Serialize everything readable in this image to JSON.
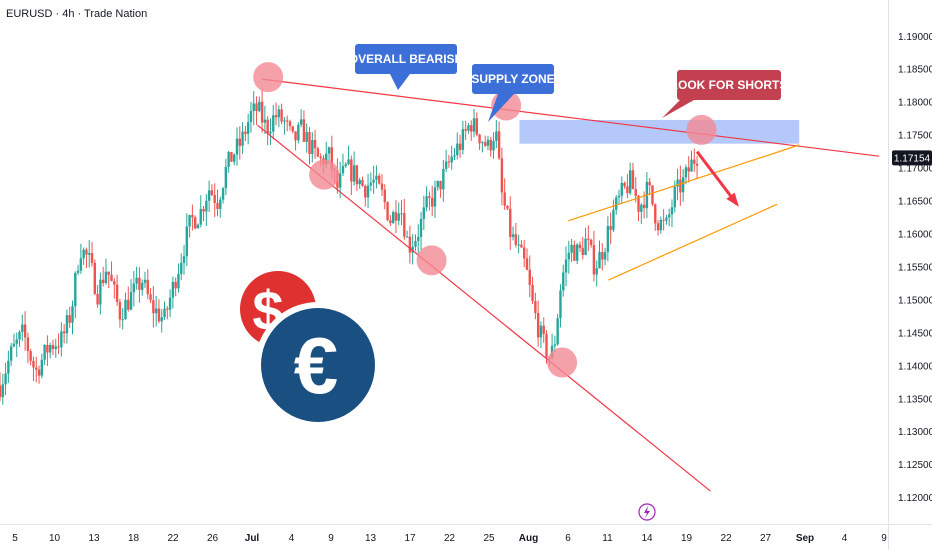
{
  "header": {
    "symbol": "EURUSD · 4h · Trade Nation"
  },
  "annotations": {
    "overall_bearish": "OVERALL BEARISH",
    "supply_zone": "SUPPLY ZONE",
    "look_for_shorts": "LOOK FOR SHORTS"
  },
  "logos": {
    "dollar": "$",
    "euro": "€"
  },
  "event_icon": "lightning-icon",
  "colors": {
    "bull": "#26a69a",
    "bear": "#ef5350",
    "trendline": "#f23645",
    "channel": "#ff9800",
    "supply_zone": "#9bb5f7",
    "overall_bearish_box": "#3d6fd9",
    "supply_box": "#3d6fd9",
    "shorts_box": "#c2404f",
    "marker": "#f28a94",
    "dollar_bg": "#e03131",
    "euro_bg": "#1a4f82",
    "price_badge": "#131722"
  },
  "chart_data": {
    "type": "candlestick",
    "title": "",
    "xlabel": "",
    "ylabel": "",
    "ylim": [
      1.116,
      1.1955
    ],
    "grid": false,
    "x_ticks": [
      {
        "label": "5",
        "bold": false
      },
      {
        "label": "10",
        "bold": false
      },
      {
        "label": "13",
        "bold": false
      },
      {
        "label": "18",
        "bold": false
      },
      {
        "label": "22",
        "bold": false
      },
      {
        "label": "26",
        "bold": false
      },
      {
        "label": "Jul",
        "bold": true
      },
      {
        "label": "4",
        "bold": false
      },
      {
        "label": "9",
        "bold": false
      },
      {
        "label": "13",
        "bold": false
      },
      {
        "label": "17",
        "bold": false
      },
      {
        "label": "22",
        "bold": false
      },
      {
        "label": "25",
        "bold": false
      },
      {
        "label": "Aug",
        "bold": true
      },
      {
        "label": "6",
        "bold": false
      },
      {
        "label": "11",
        "bold": false
      },
      {
        "label": "14",
        "bold": false
      },
      {
        "label": "19",
        "bold": false
      },
      {
        "label": "22",
        "bold": false
      },
      {
        "label": "27",
        "bold": false
      },
      {
        "label": "Sep",
        "bold": true
      },
      {
        "label": "4",
        "bold": false
      },
      {
        "label": "9",
        "bold": false
      }
    ],
    "y_ticks": [
      "1.12000",
      "1.12500",
      "1.13000",
      "1.13500",
      "1.14000",
      "1.14500",
      "1.15000",
      "1.15500",
      "1.16000",
      "1.16500",
      "1.17000",
      "1.17500",
      "1.18000",
      "1.18500",
      "1.19000"
    ],
    "y_tick_values": [
      1.12,
      1.125,
      1.13,
      1.135,
      1.14,
      1.145,
      1.15,
      1.155,
      1.16,
      1.165,
      1.17,
      1.175,
      1.18,
      1.185,
      1.19
    ],
    "last_price": {
      "label": "1.17154",
      "value": 1.17154
    },
    "close_path": [
      [
        0,
        1.137
      ],
      [
        0.013,
        1.142
      ],
      [
        0.026,
        1.145
      ],
      [
        0.04,
        1.139
      ],
      [
        0.055,
        1.143
      ],
      [
        0.07,
        1.144
      ],
      [
        0.08,
        1.148
      ],
      [
        0.09,
        1.158
      ],
      [
        0.1,
        1.156
      ],
      [
        0.11,
        1.151
      ],
      [
        0.12,
        1.155
      ],
      [
        0.135,
        1.148
      ],
      [
        0.15,
        1.151
      ],
      [
        0.16,
        1.153
      ],
      [
        0.17,
        1.149
      ],
      [
        0.185,
        1.147
      ],
      [
        0.195,
        1.152
      ],
      [
        0.205,
        1.157
      ],
      [
        0.215,
        1.162
      ],
      [
        0.225,
        1.163
      ],
      [
        0.235,
        1.167
      ],
      [
        0.245,
        1.165
      ],
      [
        0.255,
        1.17
      ],
      [
        0.262,
        1.172
      ],
      [
        0.272,
        1.174
      ],
      [
        0.282,
        1.178
      ],
      [
        0.29,
        1.179
      ],
      [
        0.3,
        1.176
      ],
      [
        0.31,
        1.178
      ],
      [
        0.32,
        1.177
      ],
      [
        0.33,
        1.174
      ],
      [
        0.34,
        1.176
      ],
      [
        0.35,
        1.173
      ],
      [
        0.36,
        1.171
      ],
      [
        0.37,
        1.172
      ],
      [
        0.38,
        1.167
      ],
      [
        0.39,
        1.17
      ],
      [
        0.4,
        1.169
      ],
      [
        0.41,
        1.167
      ],
      [
        0.42,
        1.168
      ],
      [
        0.43,
        1.166
      ],
      [
        0.44,
        1.162
      ],
      [
        0.45,
        1.165
      ],
      [
        0.46,
        1.158
      ],
      [
        0.47,
        1.16
      ],
      [
        0.48,
        1.164
      ],
      [
        0.49,
        1.166
      ],
      [
        0.5,
        1.169
      ],
      [
        0.51,
        1.172
      ],
      [
        0.52,
        1.174
      ],
      [
        0.53,
        1.177
      ],
      [
        0.54,
        1.175
      ],
      [
        0.55,
        1.173
      ],
      [
        0.558,
        1.176
      ],
      [
        0.565,
        1.166
      ],
      [
        0.575,
        1.16
      ],
      [
        0.585,
        1.157
      ],
      [
        0.592,
        1.155
      ],
      [
        0.6,
        1.149
      ],
      [
        0.61,
        1.144
      ],
      [
        0.62,
        1.141
      ],
      [
        0.625,
        1.144
      ],
      [
        0.632,
        1.153
      ],
      [
        0.642,
        1.158
      ],
      [
        0.652,
        1.157
      ],
      [
        0.66,
        1.159
      ],
      [
        0.67,
        1.155
      ],
      [
        0.68,
        1.158
      ],
      [
        0.69,
        1.163
      ],
      [
        0.7,
        1.166
      ],
      [
        0.71,
        1.168
      ],
      [
        0.72,
        1.164
      ],
      [
        0.73,
        1.167
      ],
      [
        0.74,
        1.162
      ],
      [
        0.75,
        1.161
      ],
      [
        0.76,
        1.166
      ],
      [
        0.77,
        1.168
      ],
      [
        0.78,
        1.171
      ],
      [
        0.785,
        1.172
      ]
    ],
    "overlays": {
      "upper_trendline": [
        [
          0.295,
          1.1835
        ],
        [
          0.99,
          1.1718
        ]
      ],
      "lower_trendline": [
        [
          0.29,
          1.1765
        ],
        [
          0.8,
          1.121
        ]
      ],
      "supply_zone": {
        "x0": 0.585,
        "x1": 0.9,
        "y0": 1.1737,
        "y1": 1.1773
      },
      "channel_upper": [
        [
          0.64,
          1.162
        ],
        [
          0.9,
          1.1735
        ]
      ],
      "channel_lower": [
        [
          0.685,
          1.153
        ],
        [
          0.875,
          1.1645
        ]
      ],
      "bear_arrow": [
        [
          0.785,
          1.1725
        ],
        [
          0.83,
          1.1645
        ]
      ],
      "markers": [
        [
          0.302,
          1.1838
        ],
        [
          0.365,
          1.169
        ],
        [
          0.486,
          1.156
        ],
        [
          0.57,
          1.1795
        ],
        [
          0.79,
          1.1758
        ],
        [
          0.633,
          1.1405
        ]
      ]
    }
  }
}
